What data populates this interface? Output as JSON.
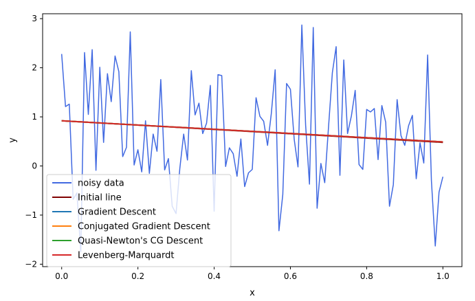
{
  "chart_data": {
    "type": "line",
    "title": "",
    "xlabel": "x",
    "ylabel": "y",
    "xlim": [
      -0.05,
      1.05
    ],
    "ylim": [
      -2.05,
      3.1
    ],
    "xticks": [
      0.0,
      0.2,
      0.4,
      0.6,
      0.8,
      1.0
    ],
    "xtick_labels": [
      "0.0",
      "0.2",
      "0.4",
      "0.6",
      "0.8",
      "1.0"
    ],
    "yticks": [
      -2,
      -1,
      0,
      1,
      2,
      3
    ],
    "ytick_labels": [
      "−2",
      "−1",
      "0",
      "1",
      "2",
      "3"
    ],
    "grid": false,
    "legend_position": "lower-left",
    "series": [
      {
        "name": "noisy data",
        "color": "#4169e1",
        "x": [
          0.0,
          0.01,
          0.02,
          0.03,
          0.04,
          0.05,
          0.06,
          0.07,
          0.08,
          0.09,
          0.1,
          0.11,
          0.12,
          0.13,
          0.14,
          0.15,
          0.16,
          0.17,
          0.18,
          0.19,
          0.2,
          0.21,
          0.22,
          0.23,
          0.24,
          0.25,
          0.26,
          0.27,
          0.28,
          0.29,
          0.3,
          0.31,
          0.32,
          0.33,
          0.34,
          0.35,
          0.36,
          0.37,
          0.38,
          0.39,
          0.4,
          0.41,
          0.42,
          0.43,
          0.44,
          0.45,
          0.46,
          0.47,
          0.48,
          0.49,
          0.5,
          0.51,
          0.52,
          0.53,
          0.54,
          0.55,
          0.56,
          0.57,
          0.58,
          0.59,
          0.6,
          0.61,
          0.62,
          0.63,
          0.64,
          0.65,
          0.66,
          0.67,
          0.68,
          0.69,
          0.7,
          0.71,
          0.72,
          0.73,
          0.74,
          0.75,
          0.76,
          0.77,
          0.78,
          0.79,
          0.8,
          0.81,
          0.82,
          0.83,
          0.84,
          0.85,
          0.86,
          0.87,
          0.88,
          0.89,
          0.9,
          0.91,
          0.92,
          0.93,
          0.94,
          0.95,
          0.96,
          0.97,
          0.98,
          0.99,
          1.0
        ],
        "y": [
          2.28,
          1.21,
          1.26,
          -0.68,
          -0.55,
          -1.75,
          2.31,
          1.05,
          2.37,
          -0.09,
          2.01,
          0.48,
          1.88,
          1.31,
          2.24,
          1.92,
          0.19,
          0.38,
          2.73,
          0.02,
          0.33,
          -0.12,
          0.92,
          -0.15,
          0.65,
          0.3,
          1.76,
          -0.08,
          0.15,
          -0.82,
          -0.97,
          -0.05,
          0.65,
          0.12,
          1.94,
          1.04,
          1.28,
          0.66,
          0.87,
          1.64,
          -0.92,
          1.86,
          1.84,
          -0.01,
          0.37,
          0.25,
          -0.21,
          0.55,
          -0.42,
          -0.14,
          -0.07,
          1.39,
          1.01,
          0.91,
          0.42,
          1.07,
          1.96,
          -1.32,
          -0.58,
          1.68,
          1.56,
          0.54,
          -0.02,
          2.87,
          0.83,
          -0.37,
          2.82,
          -0.86,
          0.05,
          -0.34,
          0.79,
          1.9,
          2.43,
          -0.19,
          2.16,
          0.66,
          1.02,
          1.54,
          0.03,
          -0.07,
          1.15,
          1.1,
          1.17,
          0.13,
          1.23,
          0.89,
          -0.82,
          -0.38,
          1.35,
          0.62,
          0.42,
          0.82,
          1.03,
          -0.26,
          0.47,
          0.06,
          2.26,
          -0.3,
          -1.63,
          -0.53,
          -0.22
        ]
      },
      {
        "name": "Initial line",
        "color": "#800000",
        "x": [
          0.0,
          1.0
        ],
        "y": [
          0.92,
          0.48
        ]
      },
      {
        "name": "Gradient Descent",
        "color": "#1f77b4",
        "x": [
          0.0,
          1.0
        ],
        "y": [
          0.92,
          0.49
        ]
      },
      {
        "name": "Conjugated Gradient Descent",
        "color": "#ff7f0e",
        "x": [
          0.0,
          1.0
        ],
        "y": [
          0.92,
          0.49
        ]
      },
      {
        "name": "Quasi-Newton's CG Descent",
        "color": "#2ca02c",
        "x": [
          0.0,
          1.0
        ],
        "y": [
          0.92,
          0.49
        ]
      },
      {
        "name": "Levenberg-Marquardt",
        "color": "#d62728",
        "x": [
          0.0,
          1.0
        ],
        "y": [
          0.92,
          0.49
        ]
      }
    ]
  }
}
